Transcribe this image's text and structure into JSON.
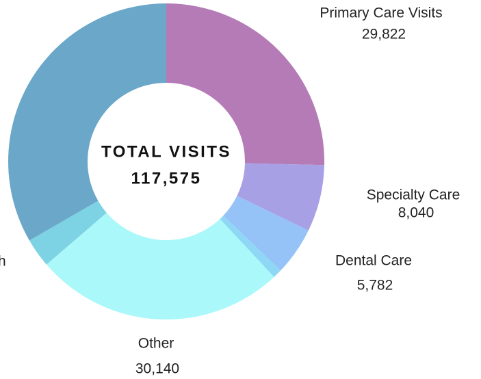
{
  "chart_data": {
    "type": "donut",
    "center_title": "TOTAL VISITS",
    "total": {
      "value": 117575,
      "label": "117,575"
    },
    "categories": [
      "Primary Care Visits",
      "Specialty Care",
      "Dental Care",
      null,
      "Other",
      "h",
      null
    ],
    "values": [
      29822,
      8040,
      5782,
      1100,
      30140,
      3500,
      39191
    ],
    "value_labels": [
      "29,822",
      "8,040",
      "5,782",
      null,
      "30,140",
      null,
      null
    ],
    "colors": [
      "#b47bb6",
      "#a8a0e4",
      "#96c3f7",
      "#8fd8f5",
      "#aaf8fa",
      "#7dd3e3",
      "#6aa7c9"
    ]
  }
}
